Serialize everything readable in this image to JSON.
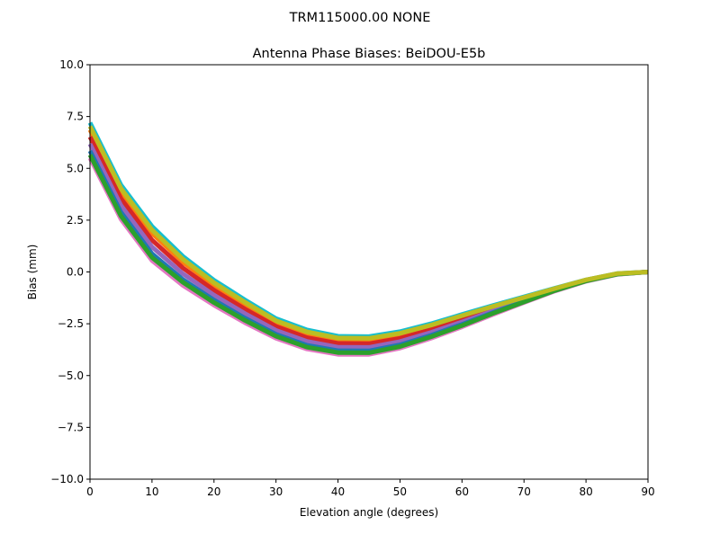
{
  "chart_data": {
    "type": "line",
    "suptitle": "TRM115000.00    NONE",
    "title": "Antenna Phase Biases: BeiDOU-E5b",
    "xlabel": "Elevation angle (degrees)",
    "ylabel": "Bias (mm)",
    "xlim": [
      0,
      90
    ],
    "ylim": [
      -10,
      10
    ],
    "xticks": [
      0,
      10,
      20,
      30,
      40,
      50,
      60,
      70,
      80,
      90
    ],
    "yticks": [
      -10.0,
      -7.5,
      -5.0,
      -2.5,
      0.0,
      2.5,
      5.0,
      7.5,
      10.0
    ],
    "ytick_labels": [
      "−10.0",
      "−7.5",
      "−5.0",
      "−2.5",
      "0.0",
      "2.5",
      "5.0",
      "7.5",
      "10.0"
    ],
    "xtick_labels": [
      "0",
      "10",
      "20",
      "30",
      "40",
      "50",
      "60",
      "70",
      "80",
      "90"
    ],
    "grid": false,
    "x": [
      0,
      5,
      10,
      15,
      20,
      25,
      30,
      35,
      40,
      45,
      50,
      55,
      60,
      65,
      70,
      75,
      80,
      85,
      90
    ],
    "series": [
      {
        "color": "#17becf",
        "values": [
          7.2,
          4.2,
          2.2,
          0.75,
          -0.4,
          -1.35,
          -2.25,
          -2.8,
          -3.1,
          -3.12,
          -2.88,
          -2.5,
          -2.05,
          -1.62,
          -1.2,
          -0.78,
          -0.38,
          -0.08,
          0
        ]
      },
      {
        "color": "#ff7f0e",
        "values": [
          6.86,
          3.87,
          1.87,
          0.47,
          -0.64,
          -1.57,
          -2.44,
          -2.98,
          -3.28,
          -3.29,
          -3.04,
          -2.64,
          -2.17,
          -1.71,
          -1.26,
          -0.81,
          -0.39,
          -0.09,
          0
        ]
      },
      {
        "color": "#d62728",
        "values": [
          6.52,
          3.54,
          1.54,
          0.19,
          -0.88,
          -1.79,
          -2.63,
          -3.17,
          -3.45,
          -3.46,
          -3.2,
          -2.78,
          -2.29,
          -1.79,
          -1.31,
          -0.84,
          -0.41,
          -0.1,
          0
        ]
      },
      {
        "color": "#9467bd",
        "values": [
          6.18,
          3.21,
          1.21,
          -0.09,
          -1.12,
          -2.01,
          -2.82,
          -3.35,
          -3.63,
          -3.64,
          -3.36,
          -2.92,
          -2.41,
          -1.88,
          -1.37,
          -0.86,
          -0.42,
          -0.1,
          0
        ]
      },
      {
        "color": "#1f77b4",
        "values": [
          5.84,
          2.88,
          0.88,
          -0.37,
          -1.36,
          -2.23,
          -3.01,
          -3.54,
          -3.8,
          -3.81,
          -3.52,
          -3.06,
          -2.53,
          -1.96,
          -1.42,
          -0.89,
          -0.44,
          -0.11,
          0
        ]
      },
      {
        "color": "#e377c2",
        "values": [
          5.5,
          2.55,
          0.55,
          -0.65,
          -1.6,
          -2.45,
          -3.2,
          -3.72,
          -3.98,
          -3.98,
          -3.68,
          -3.2,
          -2.65,
          -2.05,
          -1.48,
          -0.92,
          -0.45,
          -0.12,
          0
        ]
      },
      {
        "color": "#2ca02c",
        "values": [
          5.65,
          2.7,
          0.7,
          -0.5,
          -1.48,
          -2.34,
          -3.1,
          -3.63,
          -3.89,
          -3.9,
          -3.6,
          -3.13,
          -2.59,
          -2.0,
          -1.45,
          -0.9,
          -0.44,
          -0.11,
          0
        ]
      },
      {
        "color": "#bcbd22",
        "values": [
          7.03,
          4.03,
          2.03,
          0.61,
          -0.52,
          -1.46,
          -2.35,
          -2.89,
          -3.19,
          -3.2,
          -2.96,
          -2.57,
          -2.11,
          -1.66,
          -1.23,
          -0.8,
          -0.38,
          -0.08,
          0
        ]
      }
    ]
  }
}
